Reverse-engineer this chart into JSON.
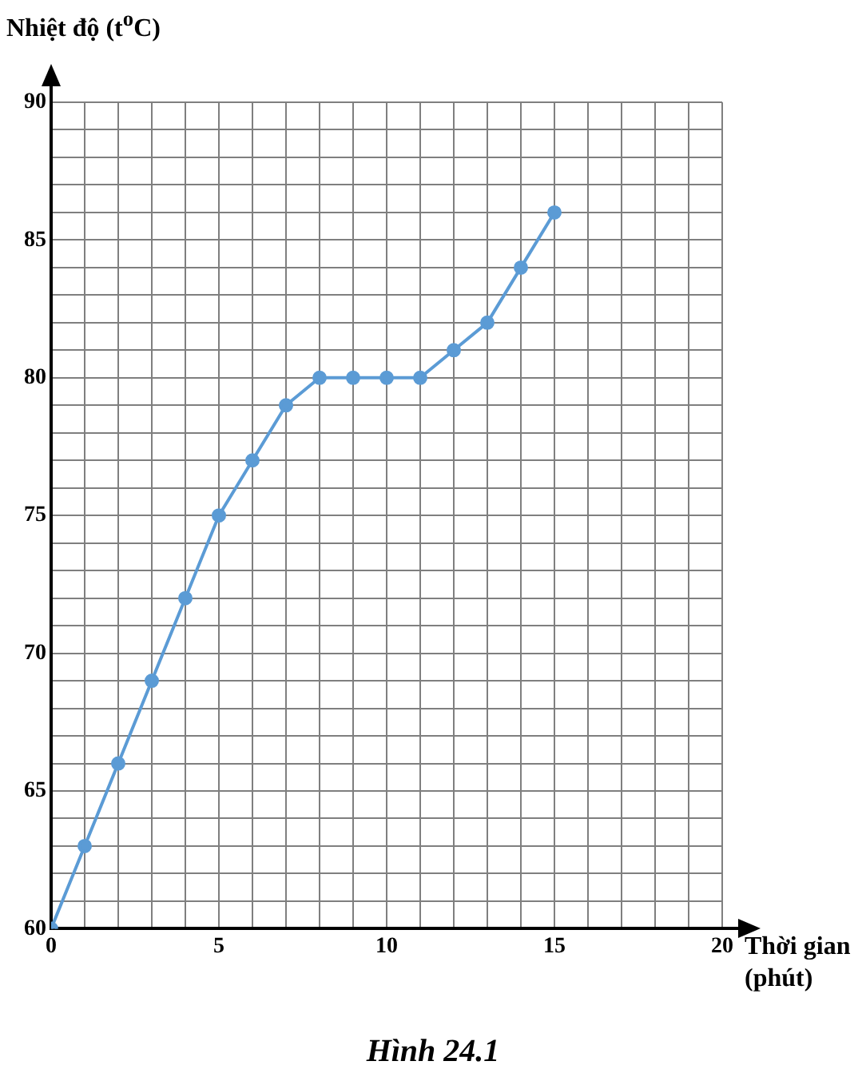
{
  "chart_data": {
    "type": "line",
    "title": "Hình 24.1",
    "xlabel": "Thời gian (phút)",
    "ylabel": "Nhiệt độ (t$^{o}$C)",
    "x": [
      0,
      1,
      2,
      3,
      4,
      5,
      6,
      7,
      8,
      9,
      10,
      11,
      12,
      13,
      14,
      15
    ],
    "series": [
      {
        "color": "#5b9bd5",
        "values": [
          60,
          63,
          66,
          69,
          72,
          75,
          77,
          79,
          80,
          80,
          80,
          80,
          81,
          82,
          84,
          86
        ]
      }
    ],
    "xlim": [
      0,
      20
    ],
    "xticks": [
      0,
      {
        "value": 1,
        "label": null
      },
      {
        "value": 2,
        "label": null
      },
      {
        "value": 3,
        "label": null
      },
      {
        "value": 4,
        "label": null
      },
      5,
      {
        "value": 6,
        "label": null
      },
      {
        "value": 7,
        "label": null
      },
      {
        "value": 8,
        "label": null
      },
      {
        "value": 9,
        "label": null
      },
      10,
      {
        "value": 11,
        "label": null
      },
      {
        "value": 12,
        "label": null
      },
      {
        "value": 13,
        "label": null
      },
      {
        "value": 14,
        "label": null
      },
      15,
      {
        "value": 16,
        "label": null
      },
      {
        "value": 17,
        "label": null
      },
      {
        "value": 18,
        "label": null
      },
      {
        "value": 19,
        "label": null
      },
      20
    ],
    "ylim": [
      60,
      90
    ],
    "yticks": [
      60,
      {
        "value": 61,
        "label": null
      },
      {
        "value": 62,
        "label": null
      },
      {
        "value": 63,
        "label": null
      },
      {
        "value": 64,
        "label": null
      },
      65,
      {
        "value": 66,
        "label": null
      },
      {
        "value": 67,
        "label": null
      },
      {
        "value": 68,
        "label": null
      },
      {
        "value": 69,
        "label": null
      },
      70,
      {
        "value": 71,
        "label": null
      },
      {
        "value": 72,
        "label": null
      },
      {
        "value": 73,
        "label": null
      },
      {
        "value": 74,
        "label": null
      },
      75,
      {
        "value": 76,
        "label": null
      },
      {
        "value": 77,
        "label": null
      },
      {
        "value": 78,
        "label": null
      },
      {
        "value": 79,
        "label": null
      },
      80,
      {
        "value": 81,
        "label": null
      },
      {
        "value": 82,
        "label": null
      },
      {
        "value": 83,
        "label": null
      },
      {
        "value": 84,
        "label": null
      },
      85,
      {
        "value": 86,
        "label": null
      },
      {
        "value": 87,
        "label": null
      },
      {
        "value": 88,
        "label": null
      },
      {
        "value": 89,
        "label": null
      },
      90
    ],
    "grid": true,
    "legend": false,
    "marker": "circle",
    "line_style": "solid"
  }
}
